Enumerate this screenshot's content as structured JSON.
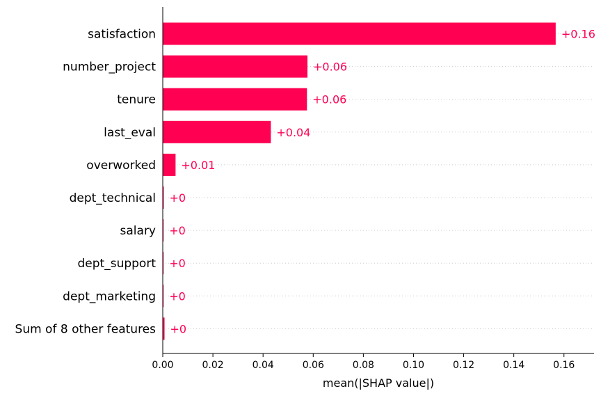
{
  "chart_data": {
    "type": "bar",
    "orientation": "horizontal",
    "categories": [
      "satisfaction",
      "number_project",
      "tenure",
      "last_eval",
      "overworked",
      "dept_technical",
      "salary",
      "dept_support",
      "dept_marketing",
      "Sum of 8 other features"
    ],
    "values": [
      0.1567,
      0.0577,
      0.0575,
      0.0431,
      0.0051,
      0.0004,
      0.0003,
      0.0001,
      0.0001,
      0.0007
    ],
    "value_labels": [
      "+0.16",
      "+0.06",
      "+0.06",
      "+0.04",
      "+0.01",
      "+0",
      "+0",
      "+0",
      "+0",
      "+0"
    ],
    "xlabel": "mean(|SHAP value|)",
    "ylabel": "",
    "title": "",
    "xlim": [
      0,
      0.172
    ],
    "xticks": [
      0,
      0.02,
      0.04,
      0.06,
      0.08,
      0.1,
      0.12,
      0.14,
      0.16
    ],
    "xtick_labels": [
      "0.00",
      "0.02",
      "0.04",
      "0.06",
      "0.08",
      "0.10",
      "0.12",
      "0.14",
      "0.16"
    ],
    "grid": "horizontal dotted row lines",
    "colors": {
      "bar": "#ff0052",
      "value_label": "#ff0052",
      "axis": "#000000",
      "grid": "#cccccc",
      "text": "#000000"
    }
  }
}
